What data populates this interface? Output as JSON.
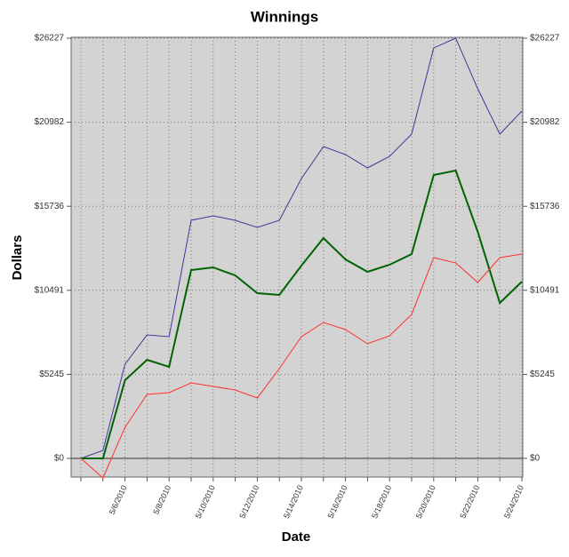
{
  "chart_data": {
    "type": "line",
    "title": "Winnings",
    "x_label": "Date",
    "y_label": "Dollars",
    "categories": [
      null,
      null,
      "5/6/2010",
      null,
      "5/8/2010",
      null,
      "5/10/2010",
      null,
      "5/12/2010",
      null,
      "5/14/2010",
      null,
      "5/16/2010",
      null,
      "5/18/2010",
      null,
      "5/20/2010",
      null,
      "5/22/2010",
      null,
      "5/24/2010"
    ],
    "series": [
      {
        "color": "#3a3a9a",
        "values": [
          0,
          499,
          5878,
          7708,
          7597,
          14861,
          15138,
          14861,
          14417,
          14861,
          17467,
          19463,
          18964,
          18132,
          18853,
          20240,
          25619,
          26227,
          23066,
          20240,
          21681
        ]
      },
      {
        "color": "#006400",
        "values": [
          0,
          0,
          4880,
          6155,
          5711,
          11755,
          11922,
          11423,
          10314,
          10203,
          12033,
          13751,
          12420,
          11644,
          12088,
          12753,
          17689,
          17966,
          14140,
          9704,
          11035
        ]
      },
      {
        "color": "#ff3030",
        "values": [
          0,
          -1220,
          1941,
          3992,
          4103,
          4713,
          4491,
          4270,
          3771,
          5600,
          7597,
          8484,
          8040,
          7153,
          7652,
          8983,
          12531,
          12199,
          10979,
          12531,
          12753
        ]
      }
    ],
    "ylim": [
      -1165,
      26283
    ],
    "yticks": [
      {
        "value": 0,
        "label": "$0"
      },
      {
        "value": 5245,
        "label": "$5245"
      },
      {
        "value": 10491,
        "label": "$10491"
      },
      {
        "value": 15736,
        "label": "$15736"
      },
      {
        "value": 20982,
        "label": "$20982"
      },
      {
        "value": 26227,
        "label": "$26227"
      }
    ],
    "grid": true,
    "background": "#d3d3d3"
  }
}
